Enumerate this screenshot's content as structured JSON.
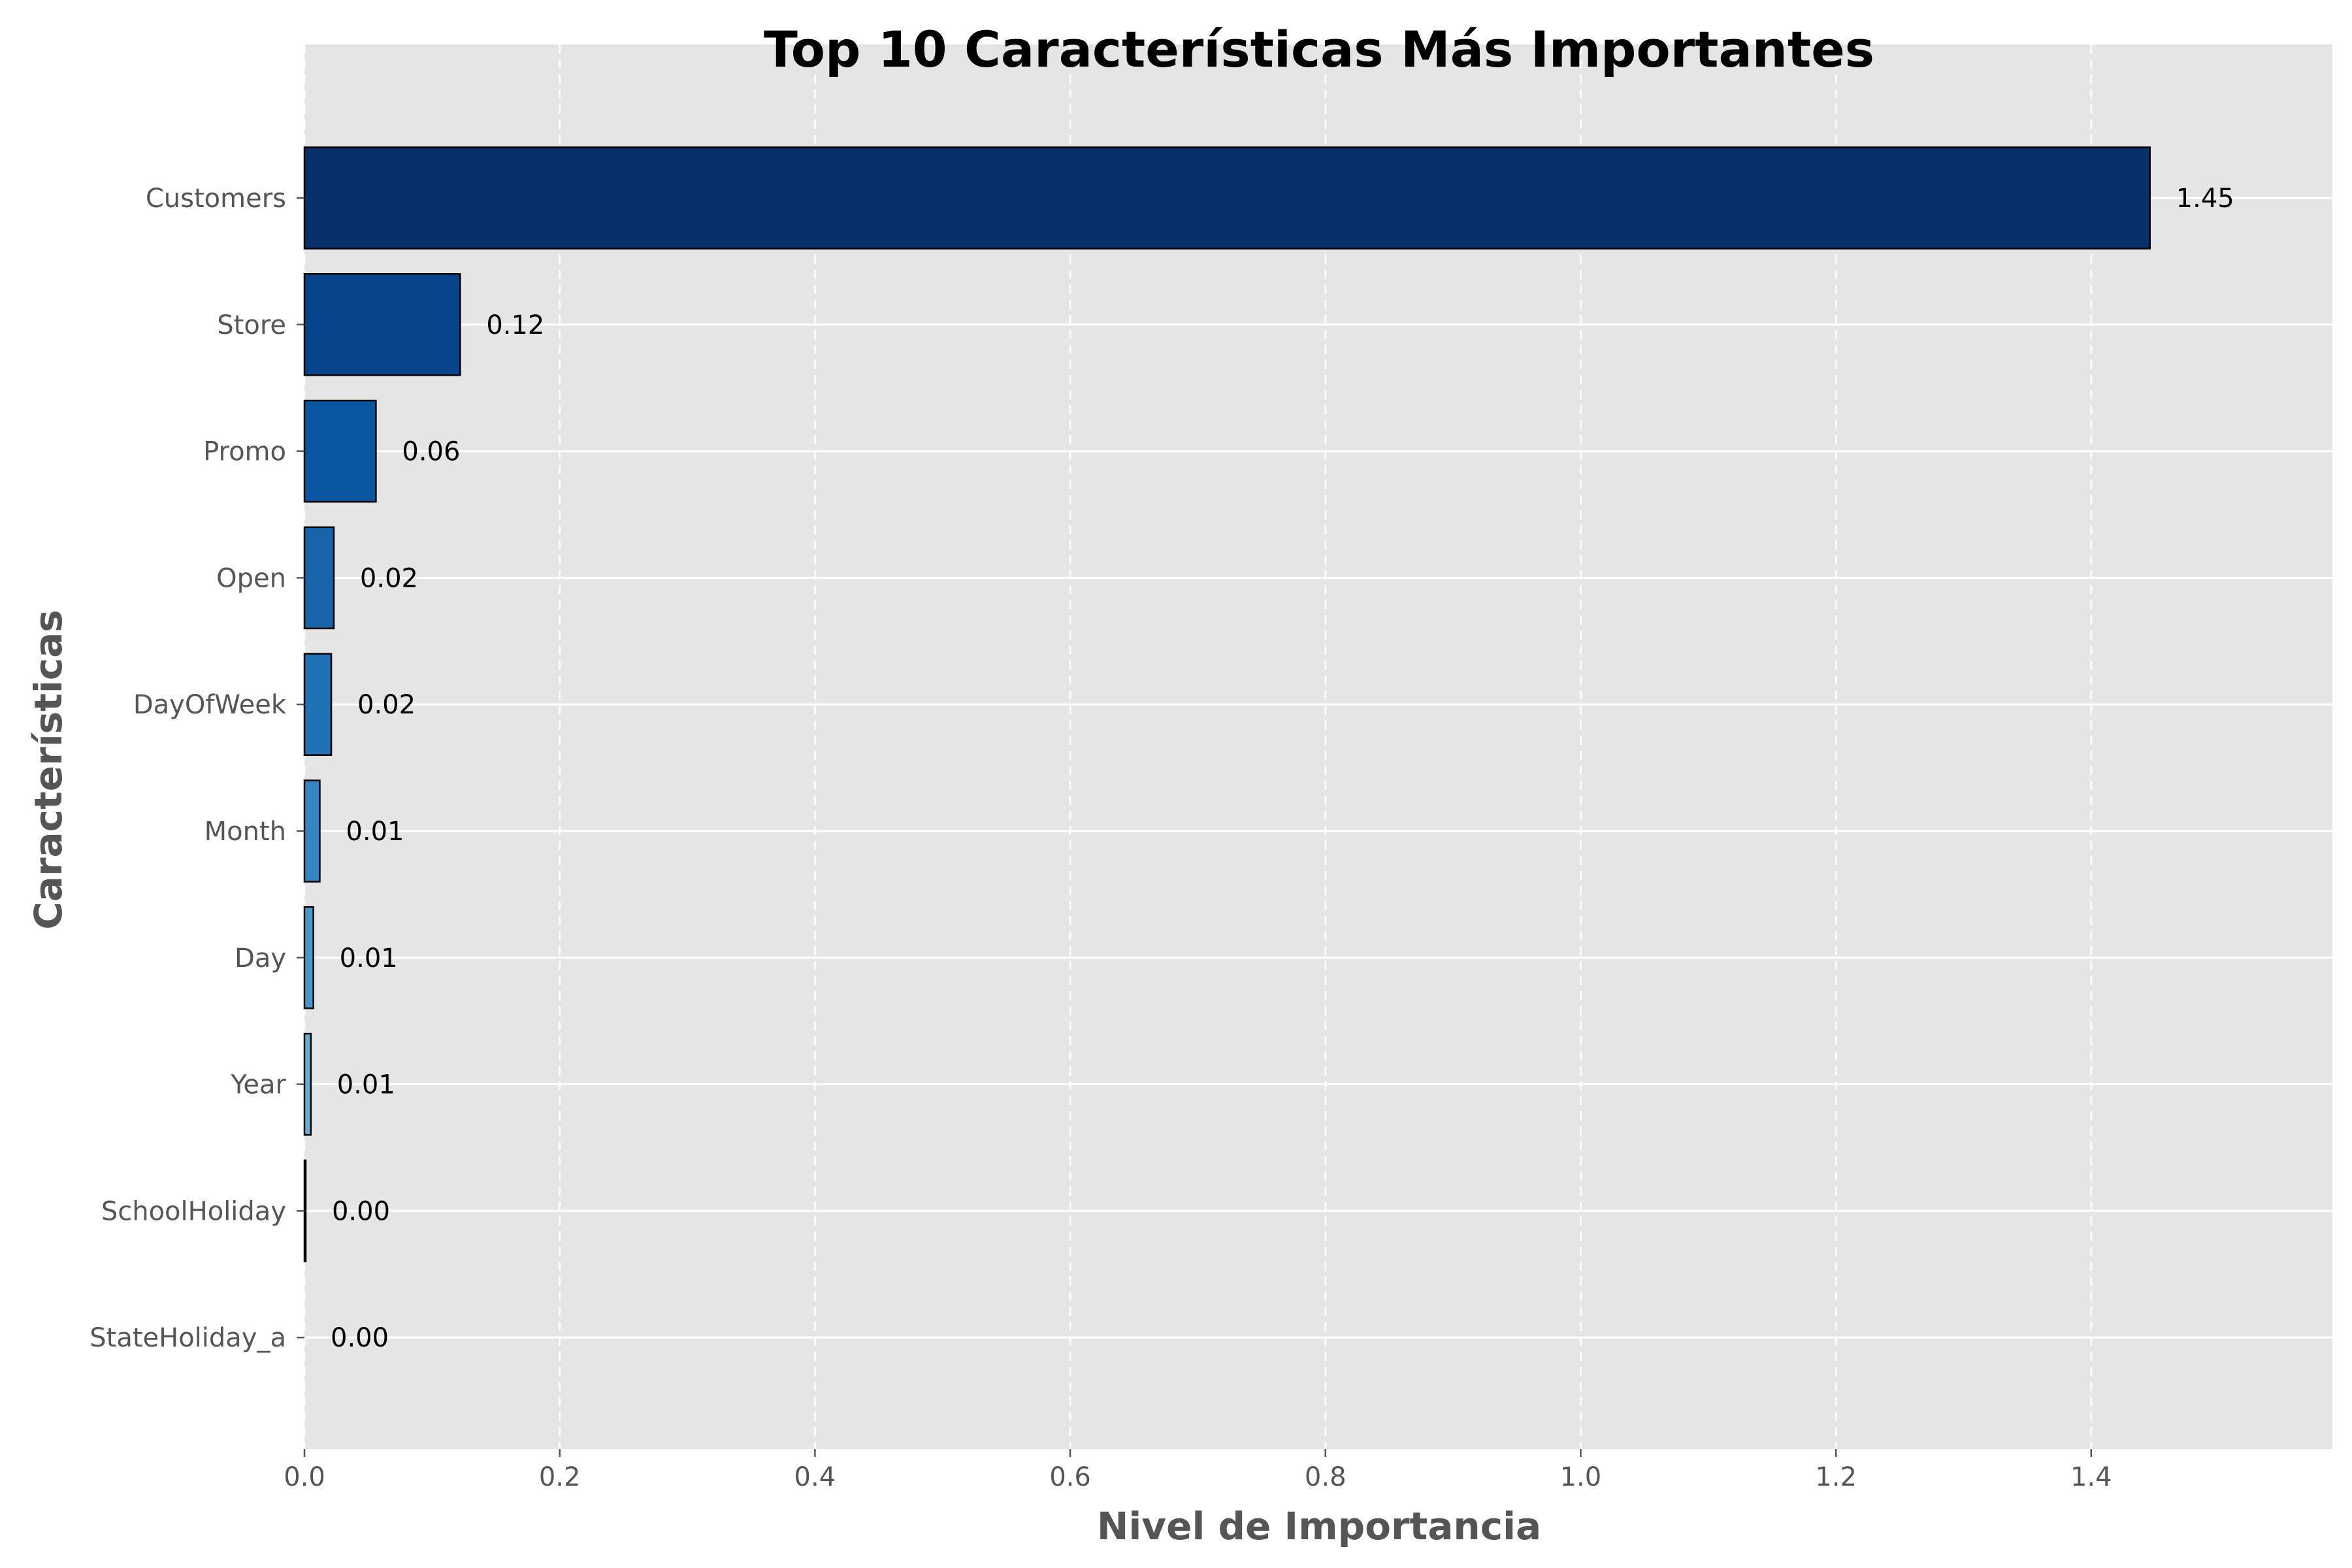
{
  "chart_data": {
    "type": "bar",
    "orientation": "horizontal",
    "title": "Top 10 Características Más Importantes",
    "xlabel": "Nivel de Importancia",
    "ylabel": "Características",
    "categories": [
      "Customers",
      "Store",
      "Promo",
      "Open",
      "DayOfWeek",
      "Month",
      "Day",
      "Year",
      "SchoolHoliday",
      "StateHoliday_a"
    ],
    "values": [
      1.446,
      0.122,
      0.056,
      0.023,
      0.021,
      0.012,
      0.007,
      0.005,
      0.001,
      0.0
    ],
    "value_labels": [
      "1.45",
      "0.12",
      "0.06",
      "0.02",
      "0.02",
      "0.01",
      "0.01",
      "0.01",
      "0.00",
      "0.00"
    ],
    "colors": [
      "#08306b",
      "#08448c",
      "#0a56a1",
      "#1764ab",
      "#2171b5",
      "#3585c2",
      "#4a98c9",
      "#6aaed6",
      "#85bcdc",
      "#9ecae1"
    ],
    "xlim": [
      0,
      1.589
    ],
    "xticks": [
      0.0,
      0.2,
      0.4,
      0.6,
      0.8,
      1.0,
      1.2,
      1.4
    ],
    "xtick_labels": [
      "0.0",
      "0.2",
      "0.4",
      "0.6",
      "0.8",
      "1.0",
      "1.2",
      "1.4"
    ],
    "grid": true,
    "background": "#e5e5e5"
  }
}
